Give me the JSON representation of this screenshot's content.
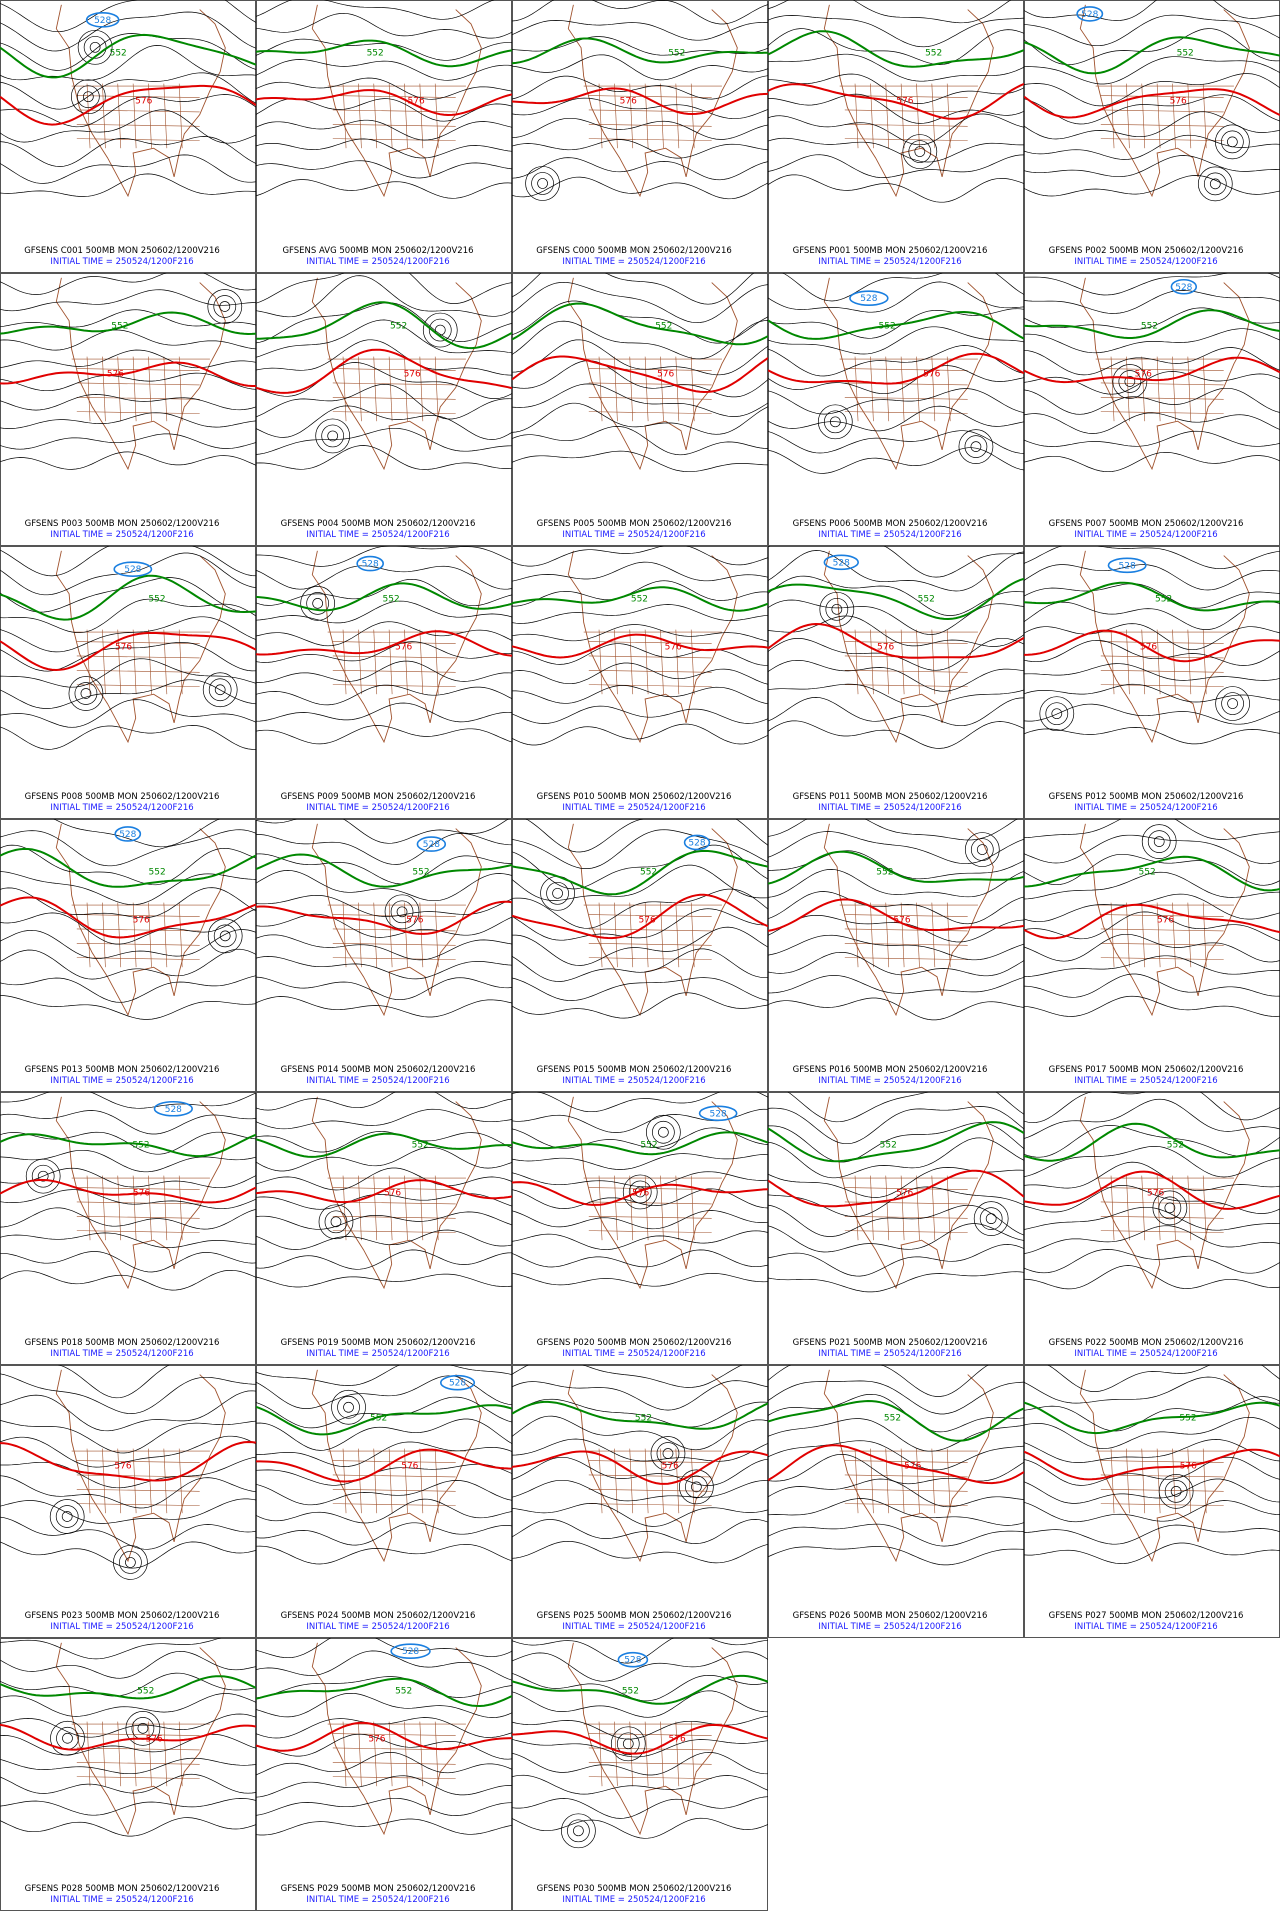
{
  "panels": [
    {
      "title": "GFSENS C001 500MB MON 250602/1200V216",
      "initial": "INITIAL TIME = 250524/1200F216",
      "labels": [
        "576",
        "552",
        "528"
      ]
    },
    {
      "title": "GFSENS AVG 500MB MON 250602/1200V216",
      "initial": "INITIAL TIME = 250524/1200F216",
      "labels": [
        "576",
        "552"
      ]
    },
    {
      "title": "GFSENS C000 500MB MON 250602/1200V216",
      "initial": "INITIAL TIME = 250524/1200F216",
      "labels": [
        "576",
        "552"
      ]
    },
    {
      "title": "GFSENS P001 500MB MON 250602/1200V216",
      "initial": "INITIAL TIME = 250524/1200F216",
      "labels": [
        "576",
        "552"
      ]
    },
    {
      "title": "GFSENS P002 500MB MON 250602/1200V216",
      "initial": "INITIAL TIME = 250524/1200F216",
      "labels": [
        "576",
        "552",
        "528"
      ]
    },
    {
      "title": "GFSENS P003 500MB MON 250602/1200V216",
      "initial": "INITIAL TIME = 250524/1200F216",
      "labels": [
        "576",
        "552"
      ]
    },
    {
      "title": "GFSENS P004 500MB MON 250602/1200V216",
      "initial": "INITIAL TIME = 250524/1200F216",
      "labels": [
        "576",
        "552"
      ]
    },
    {
      "title": "GFSENS P005 500MB MON 250602/1200V216",
      "initial": "INITIAL TIME = 250524/1200F216",
      "labels": [
        "576",
        "552"
      ]
    },
    {
      "title": "GFSENS P006 500MB MON 250602/1200V216",
      "initial": "INITIAL TIME = 250524/1200F216",
      "labels": [
        "576",
        "552",
        "528"
      ]
    },
    {
      "title": "GFSENS P007 500MB MON 250602/1200V216",
      "initial": "INITIAL TIME = 250524/1200F216",
      "labels": [
        "576",
        "552",
        "528"
      ]
    },
    {
      "title": "GFSENS P008 500MB MON 250602/1200V216",
      "initial": "INITIAL TIME = 250524/1200F216",
      "labels": [
        "576",
        "552",
        "528"
      ]
    },
    {
      "title": "GFSENS P009 500MB MON 250602/1200V216",
      "initial": "INITIAL TIME = 250524/1200F216",
      "labels": [
        "576",
        "552",
        "528"
      ]
    },
    {
      "title": "GFSENS P010 500MB MON 250602/1200V216",
      "initial": "INITIAL TIME = 250524/1200F216",
      "labels": [
        "576",
        "552"
      ]
    },
    {
      "title": "GFSENS P011 500MB MON 250602/1200V216",
      "initial": "INITIAL TIME = 250524/1200F216",
      "labels": [
        "576",
        "552",
        "528"
      ]
    },
    {
      "title": "GFSENS P012 500MB MON 250602/1200V216",
      "initial": "INITIAL TIME = 250524/1200F216",
      "labels": [
        "576",
        "552",
        "528"
      ]
    },
    {
      "title": "GFSENS P013 500MB MON 250602/1200V216",
      "initial": "INITIAL TIME = 250524/1200F216",
      "labels": [
        "576",
        "552",
        "528"
      ]
    },
    {
      "title": "GFSENS P014 500MB MON 250602/1200V216",
      "initial": "INITIAL TIME = 250524/1200F216",
      "labels": [
        "576",
        "552",
        "528"
      ]
    },
    {
      "title": "GFSENS P015 500MB MON 250602/1200V216",
      "initial": "INITIAL TIME = 250524/1200F216",
      "labels": [
        "576",
        "552",
        "528"
      ]
    },
    {
      "title": "GFSENS P016 500MB MON 250602/1200V216",
      "initial": "INITIAL TIME = 250524/1200F216",
      "labels": [
        "576",
        "552"
      ]
    },
    {
      "title": "GFSENS P017 500MB MON 250602/1200V216",
      "initial": "INITIAL TIME = 250524/1200F216",
      "labels": [
        "576",
        "552"
      ]
    },
    {
      "title": "GFSENS P018 500MB MON 250602/1200V216",
      "initial": "INITIAL TIME = 250524/1200F216",
      "labels": [
        "576",
        "552",
        "528"
      ]
    },
    {
      "title": "GFSENS P019 500MB MON 250602/1200V216",
      "initial": "INITIAL TIME = 250524/1200F216",
      "labels": [
        "576",
        "552"
      ]
    },
    {
      "title": "GFSENS P020 500MB MON 250602/1200V216",
      "initial": "INITIAL TIME = 250524/1200F216",
      "labels": [
        "576",
        "552",
        "528"
      ]
    },
    {
      "title": "GFSENS P021 500MB MON 250602/1200V216",
      "initial": "INITIAL TIME = 250524/1200F216",
      "labels": [
        "576",
        "552"
      ]
    },
    {
      "title": "GFSENS P022 500MB MON 250602/1200V216",
      "initial": "INITIAL TIME = 250524/1200F216",
      "labels": [
        "576",
        "552"
      ]
    },
    {
      "title": "GFSENS P023 500MB MON 250602/1200V216",
      "initial": "INITIAL TIME = 250524/1200F216",
      "labels": [
        "576"
      ]
    },
    {
      "title": "GFSENS P024 500MB MON 250602/1200V216",
      "initial": "INITIAL TIME = 250524/1200F216",
      "labels": [
        "576",
        "552",
        "528"
      ]
    },
    {
      "title": "GFSENS P025 500MB MON 250602/1200V216",
      "initial": "INITIAL TIME = 250524/1200F216",
      "labels": [
        "576",
        "552"
      ]
    },
    {
      "title": "GFSENS P026 500MB MON 250602/1200V216",
      "initial": "INITIAL TIME = 250524/1200F216",
      "labels": [
        "576",
        "552"
      ]
    },
    {
      "title": "GFSENS P027 500MB MON 250602/1200V216",
      "initial": "INITIAL TIME = 250524/1200F216",
      "labels": [
        "576",
        "552"
      ]
    },
    {
      "title": "GFSENS P028 500MB MON 250602/1200V216",
      "initial": "INITIAL TIME = 250524/1200F216",
      "labels": [
        "576",
        "552"
      ]
    },
    {
      "title": "GFSENS P029 500MB MON 250602/1200V216",
      "initial": "INITIAL TIME = 250524/1200F216",
      "labels": [
        "576",
        "552",
        "528"
      ]
    },
    {
      "title": "GFSENS P030 500MB MON 250602/1200V216",
      "initial": "INITIAL TIME = 250524/1200F216",
      "labels": [
        "576",
        "552",
        "528"
      ]
    }
  ]
}
